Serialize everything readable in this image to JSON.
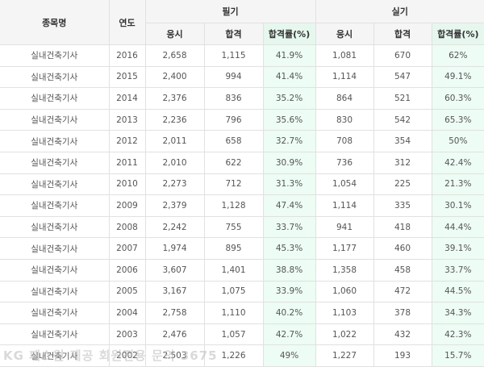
{
  "table": {
    "headers": {
      "name": "종목명",
      "year": "연도",
      "written": "필기",
      "practical": "실기",
      "applicants": "응시",
      "passed": "합격",
      "rate": "합격률(%)"
    },
    "rows": [
      {
        "name": "실내건축기사",
        "year": "2016",
        "w_app": "2,658",
        "w_pass": "1,115",
        "w_rate": "41.9%",
        "p_app": "1,081",
        "p_pass": "670",
        "p_rate": "62%"
      },
      {
        "name": "실내건축기사",
        "year": "2015",
        "w_app": "2,400",
        "w_pass": "994",
        "w_rate": "41.4%",
        "p_app": "1,114",
        "p_pass": "547",
        "p_rate": "49.1%"
      },
      {
        "name": "실내건축기사",
        "year": "2014",
        "w_app": "2,376",
        "w_pass": "836",
        "w_rate": "35.2%",
        "p_app": "864",
        "p_pass": "521",
        "p_rate": "60.3%"
      },
      {
        "name": "실내건축기사",
        "year": "2013",
        "w_app": "2,236",
        "w_pass": "796",
        "w_rate": "35.6%",
        "p_app": "830",
        "p_pass": "542",
        "p_rate": "65.3%"
      },
      {
        "name": "실내건축기사",
        "year": "2012",
        "w_app": "2,011",
        "w_pass": "658",
        "w_rate": "32.7%",
        "p_app": "708",
        "p_pass": "354",
        "p_rate": "50%"
      },
      {
        "name": "실내건축기사",
        "year": "2011",
        "w_app": "2,010",
        "w_pass": "622",
        "w_rate": "30.9%",
        "p_app": "736",
        "p_pass": "312",
        "p_rate": "42.4%"
      },
      {
        "name": "실내건축기사",
        "year": "2010",
        "w_app": "2,273",
        "w_pass": "712",
        "w_rate": "31.3%",
        "p_app": "1,054",
        "p_pass": "225",
        "p_rate": "21.3%"
      },
      {
        "name": "실내건축기사",
        "year": "2009",
        "w_app": "2,379",
        "w_pass": "1,128",
        "w_rate": "47.4%",
        "p_app": "1,114",
        "p_pass": "335",
        "p_rate": "30.1%"
      },
      {
        "name": "실내건축기사",
        "year": "2008",
        "w_app": "2,242",
        "w_pass": "755",
        "w_rate": "33.7%",
        "p_app": "941",
        "p_pass": "418",
        "p_rate": "44.4%"
      },
      {
        "name": "실내건축기사",
        "year": "2007",
        "w_app": "1,974",
        "w_pass": "895",
        "w_rate": "45.3%",
        "p_app": "1,177",
        "p_pass": "460",
        "p_rate": "39.1%"
      },
      {
        "name": "실내건축기사",
        "year": "2006",
        "w_app": "3,607",
        "w_pass": "1,401",
        "w_rate": "38.8%",
        "p_app": "1,358",
        "p_pass": "458",
        "p_rate": "33.7%"
      },
      {
        "name": "실내건축기사",
        "year": "2005",
        "w_app": "3,167",
        "w_pass": "1,075",
        "w_rate": "33.9%",
        "p_app": "1,060",
        "p_pass": "472",
        "p_rate": "44.5%"
      },
      {
        "name": "실내건축기사",
        "year": "2004",
        "w_app": "2,758",
        "w_pass": "1,110",
        "w_rate": "40.2%",
        "p_app": "1,103",
        "p_pass": "378",
        "p_rate": "34.3%"
      },
      {
        "name": "실내건축기사",
        "year": "2003",
        "w_app": "2,476",
        "w_pass": "1,057",
        "w_rate": "42.7%",
        "p_app": "1,022",
        "p_pass": "432",
        "p_rate": "42.3%"
      },
      {
        "name": "실내건축기사",
        "year": "2002",
        "w_app": "2,503",
        "w_pass": "1,226",
        "w_rate": "49%",
        "p_app": "1,227",
        "p_pass": "193",
        "p_rate": "15.7%"
      }
    ]
  },
  "watermark": "KG 패스원 제공 회원전용 문의 3675"
}
